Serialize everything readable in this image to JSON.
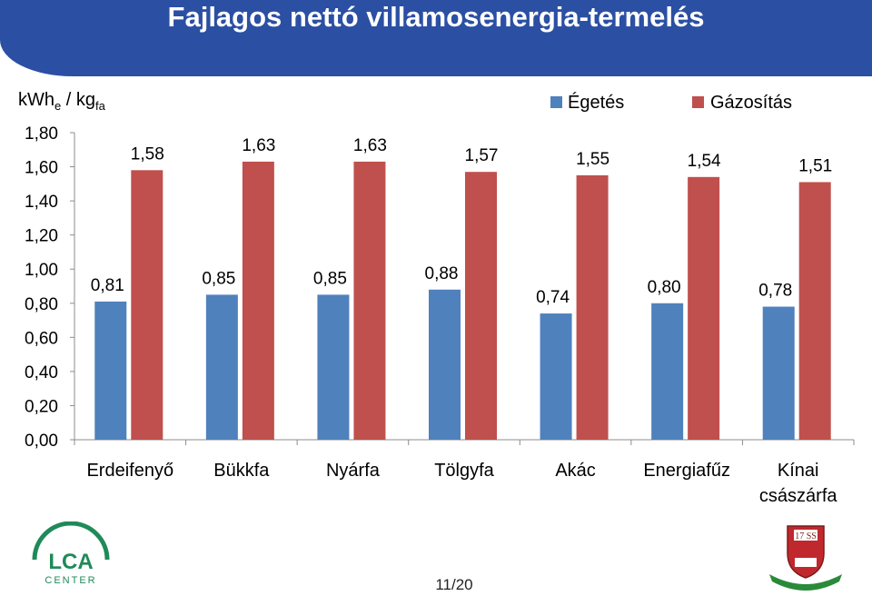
{
  "title": "Fajlagos nettó villamosenergia-termelés",
  "page_number": "11/20",
  "logo_left_text": "CENTER",
  "crest_text": "17 SS",
  "colors": {
    "header": "#2b4fa3",
    "egetes": "#4f81bd",
    "gazositas": "#c0504d"
  },
  "chart_data": {
    "type": "bar",
    "y_unit": {
      "main": "kWh",
      "sub1": "e",
      "sep": " / kg",
      "sub2": "fa"
    },
    "categories": [
      [
        "Erdeifenyő"
      ],
      [
        "Bükkfa"
      ],
      [
        "Nyárfa"
      ],
      [
        "Tölgyfa"
      ],
      [
        "Akác"
      ],
      [
        "Energiafűz"
      ],
      [
        "Kínai",
        "császárfa"
      ]
    ],
    "series": [
      {
        "name": "Égetés",
        "color": "#4f81bd",
        "values": [
          0.81,
          0.85,
          0.85,
          0.88,
          0.74,
          0.8,
          0.78
        ]
      },
      {
        "name": "Gázosítás",
        "color": "#c0504d",
        "values": [
          1.58,
          1.63,
          1.63,
          1.57,
          1.55,
          1.54,
          1.51
        ]
      }
    ],
    "ylim": [
      0,
      1.8
    ],
    "yticks": [
      "0,00",
      "0,20",
      "0,40",
      "0,60",
      "0,80",
      "1,00",
      "1,20",
      "1,40",
      "1,60",
      "1,80"
    ],
    "data_labels": [
      [
        "0,81",
        "0,85",
        "0,85",
        "0,88",
        "0,74",
        "0,80",
        "0,78"
      ],
      [
        "1,58",
        "1,63",
        "1,63",
        "1,57",
        "1,55",
        "1,54",
        "1,51"
      ]
    ],
    "grid": false,
    "legend": "top-right"
  }
}
